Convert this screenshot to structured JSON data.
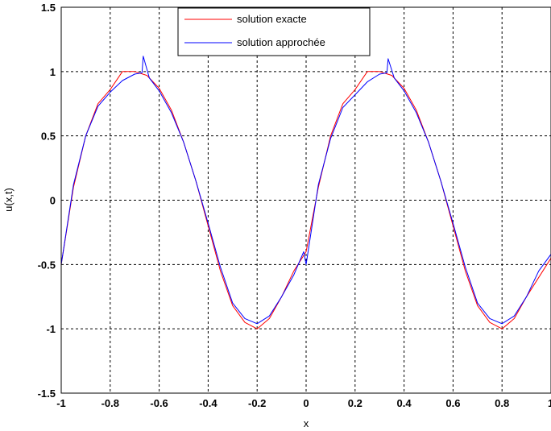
{
  "chart_data": {
    "type": "line",
    "title": "",
    "xlabel": "x",
    "ylabel": "u(x,t)",
    "xlim": [
      -1,
      1
    ],
    "ylim": [
      -1.5,
      1.5
    ],
    "grid": true,
    "legend_position": "top-center",
    "x_ticks": [
      "-1",
      "-0.8",
      "-0.6",
      "-0.4",
      "-0.2",
      "0",
      "0.2",
      "0.4",
      "0.6",
      "0.8",
      "1"
    ],
    "y_ticks": [
      "-1.5",
      "-1",
      "-0.5",
      "0",
      "0.5",
      "1",
      "1.5"
    ],
    "series": [
      {
        "name": "solution exacte",
        "color": "#ff0000",
        "x": [
          -1,
          -0.95,
          -0.9,
          -0.85,
          -0.8,
          -0.75,
          -0.7,
          -0.65,
          -0.6,
          -0.55,
          -0.5,
          -0.45,
          -0.4,
          -0.35,
          -0.3,
          -0.25,
          -0.2,
          -0.15,
          -0.1,
          -0.05,
          0,
          0.05,
          0.1,
          0.15,
          0.2,
          0.25,
          0.3,
          0.35,
          0.4,
          0.45,
          0.5,
          0.55,
          0.6,
          0.65,
          0.7,
          0.75,
          0.8,
          0.85,
          0.9,
          0.95,
          1
        ],
        "y": [
          -0.5,
          0.1,
          0.5,
          0.75,
          0.86,
          1.0,
          1.0,
          0.97,
          0.87,
          0.7,
          0.45,
          0.15,
          -0.2,
          -0.55,
          -0.82,
          -0.95,
          -1.0,
          -0.92,
          -0.75,
          -0.55,
          -0.4,
          0.1,
          0.5,
          0.75,
          0.86,
          1.0,
          1.0,
          0.97,
          0.87,
          0.7,
          0.45,
          0.15,
          -0.2,
          -0.55,
          -0.82,
          -0.95,
          -1.0,
          -0.92,
          -0.75,
          -0.6,
          -0.45
        ]
      },
      {
        "name": "solution approchée",
        "color": "#0000ff",
        "x": [
          -1,
          -0.95,
          -0.9,
          -0.85,
          -0.8,
          -0.75,
          -0.7,
          -0.67,
          -0.665,
          -0.64,
          -0.6,
          -0.55,
          -0.5,
          -0.45,
          -0.4,
          -0.35,
          -0.3,
          -0.25,
          -0.2,
          -0.15,
          -0.1,
          -0.05,
          -0.01,
          0.0,
          0.05,
          0.1,
          0.15,
          0.2,
          0.25,
          0.3,
          0.33,
          0.335,
          0.36,
          0.4,
          0.45,
          0.5,
          0.55,
          0.6,
          0.65,
          0.7,
          0.75,
          0.8,
          0.85,
          0.9,
          0.95,
          1
        ],
        "y": [
          -0.5,
          0.12,
          0.5,
          0.73,
          0.84,
          0.93,
          0.98,
          0.99,
          1.12,
          0.95,
          0.85,
          0.68,
          0.45,
          0.15,
          -0.18,
          -0.52,
          -0.8,
          -0.92,
          -0.96,
          -0.9,
          -0.75,
          -0.58,
          -0.4,
          -0.5,
          0.12,
          0.48,
          0.72,
          0.82,
          0.92,
          0.98,
          0.99,
          1.1,
          0.95,
          0.85,
          0.68,
          0.45,
          0.15,
          -0.18,
          -0.52,
          -0.8,
          -0.92,
          -0.96,
          -0.9,
          -0.75,
          -0.55,
          -0.42
        ]
      }
    ]
  }
}
